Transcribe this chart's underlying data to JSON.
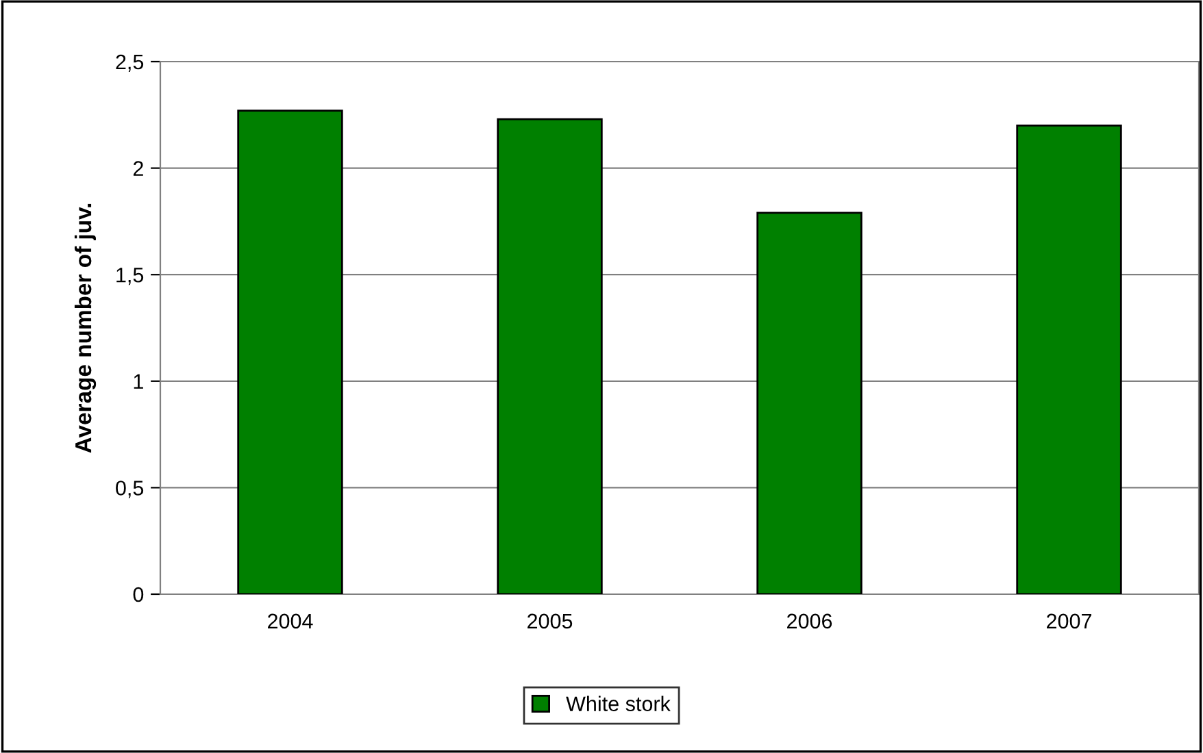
{
  "chart_data": {
    "type": "bar",
    "ylabel": "Average number of juv.",
    "categories": [
      "2004",
      "2005",
      "2006",
      "2007"
    ],
    "series": [
      {
        "name": "White stork",
        "color": "#008000",
        "values": [
          2.27,
          2.23,
          1.79,
          2.2
        ]
      }
    ],
    "ylim": [
      0,
      2.5
    ],
    "yticks": [
      0,
      {
        "value": 0.5,
        "label": "0,5"
      },
      1,
      {
        "value": 1.5,
        "label": "1,5"
      },
      2,
      {
        "value": 2.5,
        "label": "2,5"
      }
    ],
    "grid": "y",
    "legend": "bottom"
  }
}
